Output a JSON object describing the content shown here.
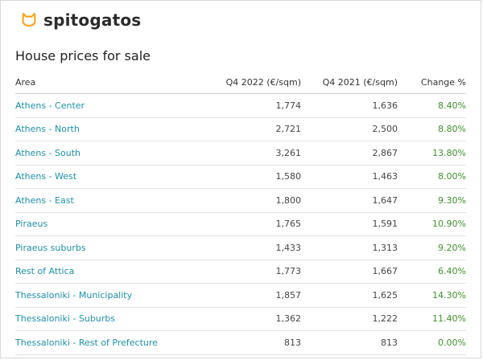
{
  "brand": {
    "name": "spitogatos",
    "icon": "cat-icon",
    "icon_color": "#f5a623"
  },
  "title": "House prices for sale",
  "table": {
    "headers": {
      "area": "Area",
      "q4_2022": "Q4 2022 (€/sqm)",
      "q4_2021": "Q4 2021 (€/sqm)",
      "change": "Change %"
    },
    "rows": [
      {
        "area": "Athens - Center",
        "q4_2022": "1,774",
        "q4_2021": "1,636",
        "change": "8.40%"
      },
      {
        "area": "Athens - North",
        "q4_2022": "2,721",
        "q4_2021": "2,500",
        "change": "8.80%"
      },
      {
        "area": "Athens - South",
        "q4_2022": "3,261",
        "q4_2021": "2,867",
        "change": "13.80%"
      },
      {
        "area": "Athens - West",
        "q4_2022": "1,580",
        "q4_2021": "1,463",
        "change": "8.00%"
      },
      {
        "area": "Athens - East",
        "q4_2022": "1,800",
        "q4_2021": "1,647",
        "change": "9.30%"
      },
      {
        "area": "Piraeus",
        "q4_2022": "1,765",
        "q4_2021": "1,591",
        "change": "10.90%"
      },
      {
        "area": "Piraeus suburbs",
        "q4_2022": "1,433",
        "q4_2021": "1,313",
        "change": "9.20%"
      },
      {
        "area": "Rest of Attica",
        "q4_2022": "1,773",
        "q4_2021": "1,667",
        "change": "6.40%"
      },
      {
        "area": "Thessaloniki - Municipality",
        "q4_2022": "1,857",
        "q4_2021": "1,625",
        "change": "14.30%"
      },
      {
        "area": "Thessaloniki - Suburbs",
        "q4_2022": "1,362",
        "q4_2021": "1,222",
        "change": "11.40%"
      },
      {
        "area": "Thessaloniki - Rest of Prefecture",
        "q4_2022": "813",
        "q4_2021": "813",
        "change": "0.00%"
      }
    ]
  }
}
